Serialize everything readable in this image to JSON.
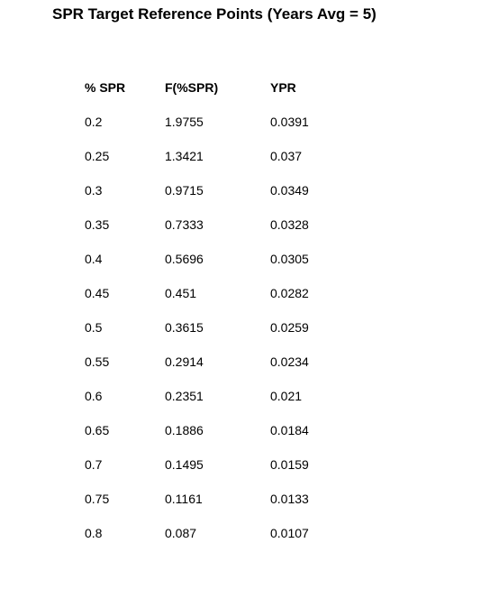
{
  "title": "SPR Target Reference Points (Years Avg = 5)",
  "table": {
    "headers": [
      "% SPR",
      "F(%SPR)",
      "YPR"
    ],
    "rows": [
      [
        "0.2",
        "1.9755",
        "0.0391"
      ],
      [
        "0.25",
        "1.3421",
        "0.037"
      ],
      [
        "0.3",
        "0.9715",
        "0.0349"
      ],
      [
        "0.35",
        "0.7333",
        "0.0328"
      ],
      [
        "0.4",
        "0.5696",
        "0.0305"
      ],
      [
        "0.45",
        "0.451",
        "0.0282"
      ],
      [
        "0.5",
        "0.3615",
        "0.0259"
      ],
      [
        "0.55",
        "0.2914",
        "0.0234"
      ],
      [
        "0.6",
        "0.2351",
        "0.021"
      ],
      [
        "0.65",
        "0.1886",
        "0.0184"
      ],
      [
        "0.7",
        "0.1495",
        "0.0159"
      ],
      [
        "0.75",
        "0.1161",
        "0.0133"
      ],
      [
        "0.8",
        "0.087",
        "0.0107"
      ]
    ]
  }
}
